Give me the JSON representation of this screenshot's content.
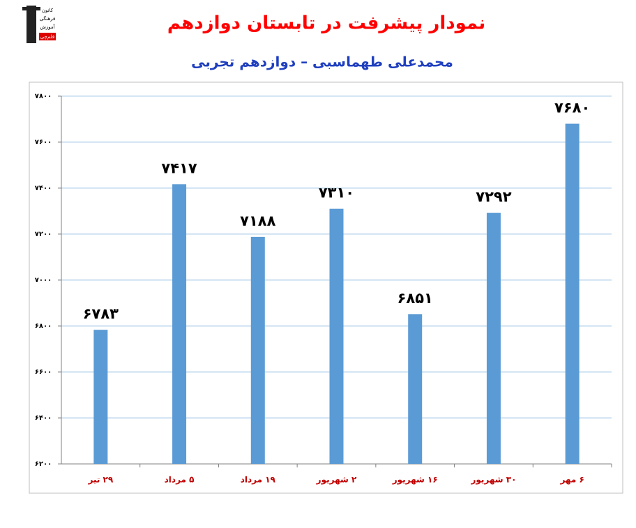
{
  "logo": {
    "lines": [
      "کانون",
      "فرهنگی",
      "آموزش",
      "قلم‌چی"
    ]
  },
  "chart_data": {
    "type": "bar",
    "title": "نمودار پیشرفت در تابستان دوازدهم",
    "subtitle": "محمدعلی طهماسبی – دوازدهم تجربی",
    "categories": [
      "۲۹ تیر",
      "۵ مرداد",
      "۱۹ مرداد",
      "۲ شهریور",
      "۱۶ شهریور",
      "۳۰ شهریور",
      "۶ مهر"
    ],
    "values": [
      6783,
      7417,
      7188,
      7310,
      6851,
      7292,
      7680
    ],
    "value_labels": [
      "۶۷۸۳",
      "۷۴۱۷",
      "۷۱۸۸",
      "۷۳۱۰",
      "۶۸۵۱",
      "۷۲۹۲",
      "۷۶۸۰"
    ],
    "color": "#5b9bd5",
    "ylim": [
      6200,
      7800
    ],
    "yticks": [
      {
        "value": 6200,
        "label": "۶۲۰۰"
      },
      {
        "value": 6400,
        "label": "۶۴۰۰"
      },
      {
        "value": 6600,
        "label": "۶۶۰۰"
      },
      {
        "value": 6800,
        "label": "۶۸۰۰"
      },
      {
        "value": 7000,
        "label": "۷۰۰۰"
      },
      {
        "value": 7200,
        "label": "۷۲۰۰"
      },
      {
        "value": 7400,
        "label": "۷۴۰۰"
      },
      {
        "value": 7600,
        "label": "۷۶۰۰"
      },
      {
        "value": 7800,
        "label": "۷۸۰۰"
      }
    ],
    "grid": true
  }
}
